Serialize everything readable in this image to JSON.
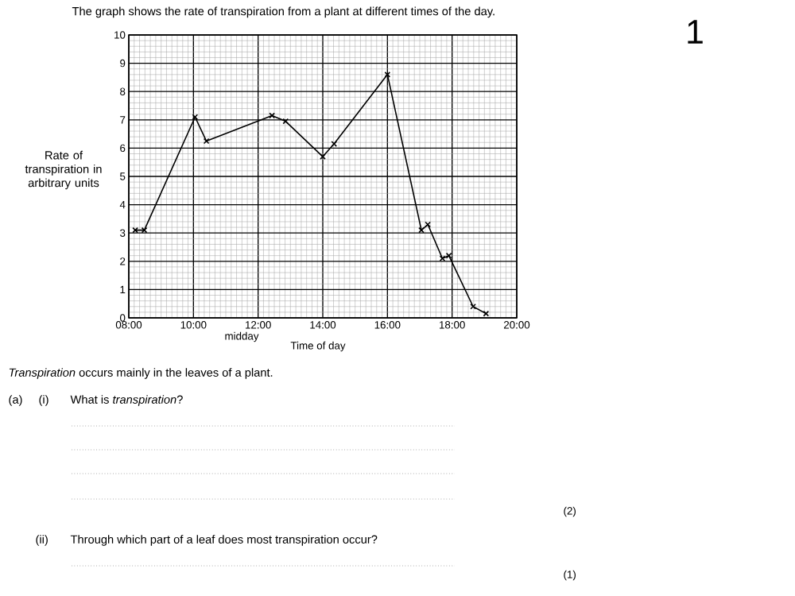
{
  "chart_data": {
    "type": "line",
    "title": "The graph shows the rate of transpiration from a plant at different times of the day.",
    "xlabel": "Time of day",
    "ylabel": "Rate of transpiration in arbitrary units",
    "x": [
      8.2,
      8.48,
      10.05,
      10.4,
      12.43,
      12.85,
      14.0,
      14.35,
      16.0,
      17.05,
      17.25,
      17.7,
      17.9,
      18.65,
      19.05
    ],
    "series": [
      {
        "color": "#000000",
        "values": [
          3.1,
          3.1,
          7.1,
          6.25,
          7.15,
          6.95,
          5.7,
          6.15,
          8.6,
          3.1,
          3.3,
          2.1,
          2.2,
          0.4,
          0.15
        ]
      }
    ],
    "xlim": [
      8,
      20
    ],
    "ylim": [
      0,
      10
    ],
    "xticks": [
      {
        "value": 8,
        "label": "08:00"
      },
      {
        "value": 10,
        "label": "10:00"
      },
      {
        "value": 12,
        "label": "12:00"
      },
      {
        "value": 14,
        "label": "14:00"
      },
      {
        "value": 16,
        "label": "16:00"
      },
      {
        "value": 18,
        "label": "18:00"
      },
      {
        "value": 20,
        "label": "20:00"
      }
    ],
    "yticks": [
      0,
      1,
      2,
      3,
      4,
      5,
      6,
      7,
      8,
      9,
      10
    ],
    "grid": true,
    "marker": "cross",
    "line_style": "solid",
    "annotations": [
      "midday",
      "1",
      "*Transpiration* occurs mainly in the leaves of a plant.",
      "(a)",
      "(i)",
      "What is *transpiration*?",
      "(2)",
      "(ii)",
      "Through which part of a leaf does most transpiration occur?",
      "(1)"
    ]
  }
}
